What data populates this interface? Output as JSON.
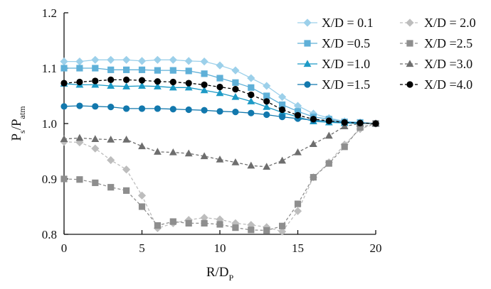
{
  "chart_data": {
    "type": "line",
    "xlabel": {
      "main": "R/D",
      "sub": "P"
    },
    "ylabel": {
      "main": "P",
      "sub1": "s",
      "mid": "/P",
      "sub2": "atm"
    },
    "xlim": [
      0,
      20
    ],
    "ylim": [
      0.8,
      1.2
    ],
    "xticks": [
      0,
      5,
      10,
      15,
      20
    ],
    "yticks": [
      0.8,
      0.9,
      1.0,
      1.1,
      1.2
    ],
    "ytick_labels": [
      "0.8",
      "0.9",
      "1.0",
      "1.1",
      "1.2"
    ],
    "grid": false,
    "legend_position": "top-right",
    "series": [
      {
        "name": "X/D = 0.1",
        "color": "#9cd0ea",
        "marker": "diamond",
        "dashed": false,
        "x": [
          0,
          1,
          2,
          3,
          4,
          5,
          6,
          7,
          8,
          9,
          10,
          11,
          12,
          13,
          14,
          15,
          16,
          17,
          18,
          19,
          20
        ],
        "y": [
          1.112,
          1.112,
          1.115,
          1.115,
          1.115,
          1.113,
          1.115,
          1.115,
          1.113,
          1.112,
          1.105,
          1.096,
          1.082,
          1.068,
          1.048,
          1.032,
          1.018,
          1.01,
          1.004,
          1.002,
          1.0
        ]
      },
      {
        "name": "X/D =0.5",
        "color": "#5fb0d8",
        "marker": "square",
        "dashed": false,
        "x": [
          0,
          1,
          2,
          3,
          4,
          5,
          6,
          7,
          8,
          9,
          10,
          11,
          12,
          13,
          14,
          15,
          16,
          17,
          18,
          19,
          20
        ],
        "y": [
          1.1,
          1.1,
          1.1,
          1.097,
          1.097,
          1.097,
          1.096,
          1.096,
          1.095,
          1.09,
          1.082,
          1.074,
          1.065,
          1.05,
          1.034,
          1.022,
          1.012,
          1.008,
          1.003,
          1.002,
          1.0
        ]
      },
      {
        "name": "X/D =1.0",
        "color": "#1d9ac6",
        "marker": "triangle",
        "dashed": false,
        "x": [
          0,
          1,
          2,
          3,
          4,
          5,
          6,
          7,
          8,
          9,
          10,
          11,
          12,
          13,
          14,
          15,
          16,
          17,
          18,
          19,
          20
        ],
        "y": [
          1.072,
          1.07,
          1.07,
          1.068,
          1.067,
          1.068,
          1.067,
          1.065,
          1.065,
          1.06,
          1.055,
          1.048,
          1.04,
          1.03,
          1.02,
          1.012,
          1.004,
          1.002,
          1.001,
          1.0,
          1.0
        ]
      },
      {
        "name": "X/D =1.5",
        "color": "#1278ad",
        "marker": "circle",
        "dashed": false,
        "x": [
          0,
          1,
          2,
          3,
          4,
          5,
          6,
          7,
          8,
          9,
          10,
          11,
          12,
          13,
          14,
          15,
          16,
          17,
          18,
          19,
          20
        ],
        "y": [
          1.031,
          1.032,
          1.031,
          1.03,
          1.027,
          1.027,
          1.027,
          1.026,
          1.025,
          1.024,
          1.022,
          1.021,
          1.019,
          1.016,
          1.012,
          1.009,
          1.006,
          1.004,
          1.002,
          1.001,
          1.0
        ]
      },
      {
        "name": "X/D = 2.0",
        "color": "#bdbdbd",
        "marker": "diamond",
        "dashed": true,
        "x": [
          0,
          1,
          2,
          3,
          4,
          5,
          6,
          7,
          8,
          9,
          10,
          11,
          12,
          13,
          14,
          15,
          16,
          17,
          18,
          19,
          20
        ],
        "y": [
          0.967,
          0.966,
          0.955,
          0.934,
          0.917,
          0.87,
          0.811,
          0.82,
          0.826,
          0.83,
          0.827,
          0.82,
          0.817,
          0.813,
          0.805,
          0.842,
          0.903,
          0.93,
          0.962,
          0.99,
          1.0
        ]
      },
      {
        "name": "X/D =2.5",
        "color": "#8e8e8e",
        "marker": "square",
        "dashed": true,
        "x": [
          0,
          1,
          2,
          3,
          4,
          5,
          6,
          7,
          8,
          9,
          10,
          11,
          12,
          13,
          14,
          15,
          16,
          17,
          18,
          19,
          20
        ],
        "y": [
          0.9,
          0.899,
          0.893,
          0.885,
          0.879,
          0.85,
          0.816,
          0.823,
          0.82,
          0.82,
          0.818,
          0.812,
          0.808,
          0.807,
          0.815,
          0.855,
          0.903,
          0.928,
          0.958,
          0.993,
          1.0
        ]
      },
      {
        "name": "X/D =3.0",
        "color": "#6e6e6e",
        "marker": "triangle",
        "dashed": true,
        "x": [
          0,
          1,
          2,
          3,
          4,
          5,
          6,
          7,
          8,
          9,
          10,
          11,
          12,
          13,
          14,
          15,
          16,
          17,
          18,
          19,
          20
        ],
        "y": [
          0.972,
          0.974,
          0.972,
          0.971,
          0.971,
          0.959,
          0.949,
          0.948,
          0.946,
          0.941,
          0.935,
          0.93,
          0.924,
          0.922,
          0.933,
          0.948,
          0.963,
          0.978,
          0.995,
          1.0,
          1.0
        ]
      },
      {
        "name": "X/D =4.0",
        "color": "#000000",
        "marker": "circle",
        "dashed": true,
        "x": [
          0,
          1,
          2,
          3,
          4,
          5,
          6,
          7,
          8,
          9,
          10,
          11,
          12,
          13,
          14,
          15,
          16,
          17,
          18,
          19,
          20
        ],
        "y": [
          1.073,
          1.075,
          1.077,
          1.079,
          1.079,
          1.078,
          1.076,
          1.075,
          1.073,
          1.07,
          1.066,
          1.062,
          1.052,
          1.04,
          1.025,
          1.015,
          1.008,
          1.005,
          1.002,
          1.001,
          1.0
        ]
      }
    ]
  }
}
